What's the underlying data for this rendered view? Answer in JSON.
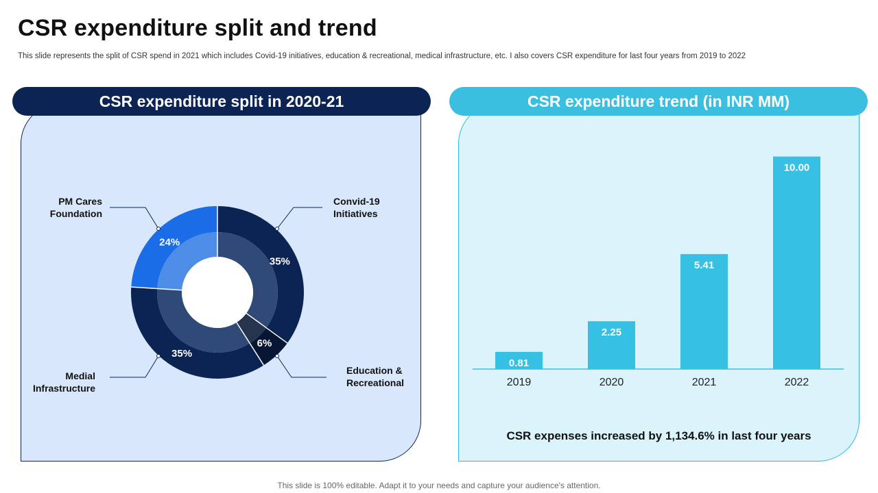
{
  "page": {
    "title": "CSR expenditure split and trend",
    "subtitle": "This slide represents the split of CSR spend in 2021 which includes Covid-19 initiatives, education & recreational, medical infrastructure, etc. I also covers CSR expenditure for last four years from 2019 to 2022",
    "footer": "This slide is 100% editable. Adapt it to your needs and capture your audience's attention."
  },
  "left_panel": {
    "header": "CSR expenditure split in 2020-21"
  },
  "right_panel": {
    "header": "CSR expenditure trend (in INR MM)",
    "conclusion": "CSR expenses increased by 1,134.6% in last four years"
  },
  "colors": {
    "navy": "#0c2453",
    "royal": "#1a6de6",
    "bar": "#36c0e3",
    "dark_slice": "#061634",
    "inner_navy": "#2f4a77",
    "inner_royal": "#4d8de8",
    "inner_dark": "#27344e"
  },
  "chart_data": [
    {
      "type": "pie",
      "title": "CSR expenditure split in 2020-21",
      "categories": [
        "Convid-19 Initiatives",
        "Education & Recreational",
        "Medial Infrastructure",
        "PM Cares Foundation"
      ],
      "values": [
        35,
        6,
        35,
        24
      ],
      "value_labels": [
        "35%",
        "6%",
        "35%",
        "24%"
      ],
      "unit": "%"
    },
    {
      "type": "bar",
      "title": "CSR expenditure trend (in INR MM)",
      "categories": [
        "2019",
        "2020",
        "2021",
        "2022"
      ],
      "values": [
        0.81,
        2.25,
        5.41,
        10.0
      ],
      "value_labels": [
        "0.81",
        "2.25",
        "5.41",
        "10.00"
      ],
      "ylim": [
        0,
        10.6
      ],
      "xlabel": "",
      "ylabel": ""
    }
  ]
}
